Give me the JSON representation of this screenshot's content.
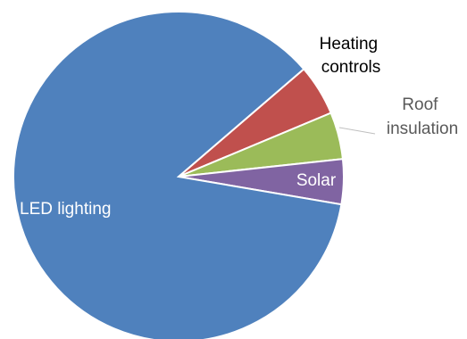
{
  "chart_data": {
    "type": "pie",
    "title": "",
    "categories": [
      "Heating controls",
      "Roof insulation",
      "Solar",
      "LED lighting"
    ],
    "values": [
      5.0,
      4.6,
      4.4,
      86.0
    ],
    "colors": [
      "#c0504d",
      "#9bbb59",
      "#8064a2",
      "#4f81bd"
    ],
    "label_lines": [
      "Heating",
      "controls",
      "Roof",
      "insulation",
      "Solar",
      "LED lighting"
    ],
    "label_colors": {
      "outside_dark": "#000000",
      "outside_gray": "#595959",
      "inside": "#ffffff",
      "leader": "#bfbfbf"
    },
    "legend": "none"
  }
}
